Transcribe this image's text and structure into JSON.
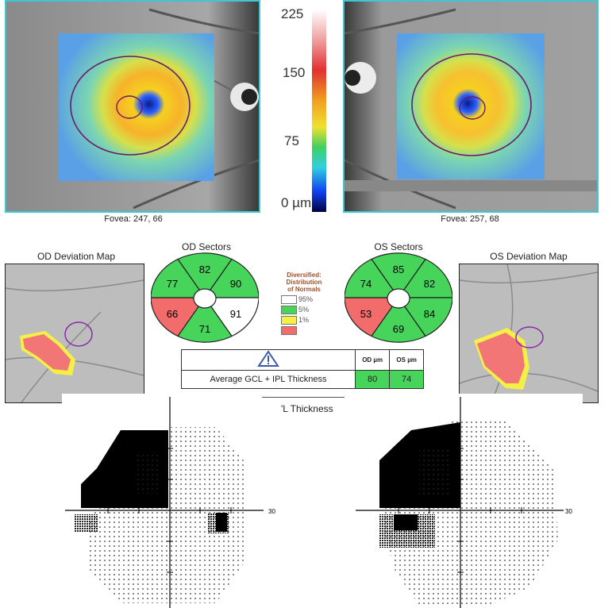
{
  "scale": {
    "labels": [
      "225",
      "150",
      "75",
      "0 µm"
    ]
  },
  "od": {
    "fovea": "Fovea: 247, 66",
    "deviation_title": "OD Deviation Map",
    "sectors_title": "OD Sectors",
    "sectors": [
      {
        "value": "82",
        "color": "#46d45b"
      },
      {
        "value": "90",
        "color": "#46d45b"
      },
      {
        "value": "91",
        "color": "#ffffff"
      },
      {
        "value": "71",
        "color": "#46d45b"
      },
      {
        "value": "66",
        "color": "#f26c6c"
      },
      {
        "value": "77",
        "color": "#46d45b"
      }
    ]
  },
  "os": {
    "fovea": "Fovea: 257, 68",
    "deviation_title": "OS Deviation Map",
    "sectors_title": "OS Sectors",
    "sectors": [
      {
        "value": "85",
        "color": "#46d45b"
      },
      {
        "value": "82",
        "color": "#46d45b"
      },
      {
        "value": "84",
        "color": "#46d45b"
      },
      {
        "value": "69",
        "color": "#46d45b"
      },
      {
        "value": "53",
        "color": "#f26c6c"
      },
      {
        "value": "74",
        "color": "#46d45b"
      }
    ]
  },
  "legend": {
    "title_lines": [
      "Diversified:",
      "Distribution",
      "of Normals"
    ],
    "items": [
      {
        "label": "95%",
        "color": "#ffffff"
      },
      {
        "label": "5%",
        "color": "#46d45b"
      },
      {
        "label": "1%",
        "color": "#f5f046"
      },
      {
        "label": "",
        "color": "#f26c6c"
      }
    ]
  },
  "thickness_table": {
    "header_od": "OD µm",
    "header_os": "OS µm",
    "row_label": "Average GCL + IPL Thickness",
    "od_value": "80",
    "os_value": "74",
    "partial_label": "'L Thickness"
  },
  "visual_field": {
    "axis_label_left": "30",
    "axis_label_right": "30"
  }
}
